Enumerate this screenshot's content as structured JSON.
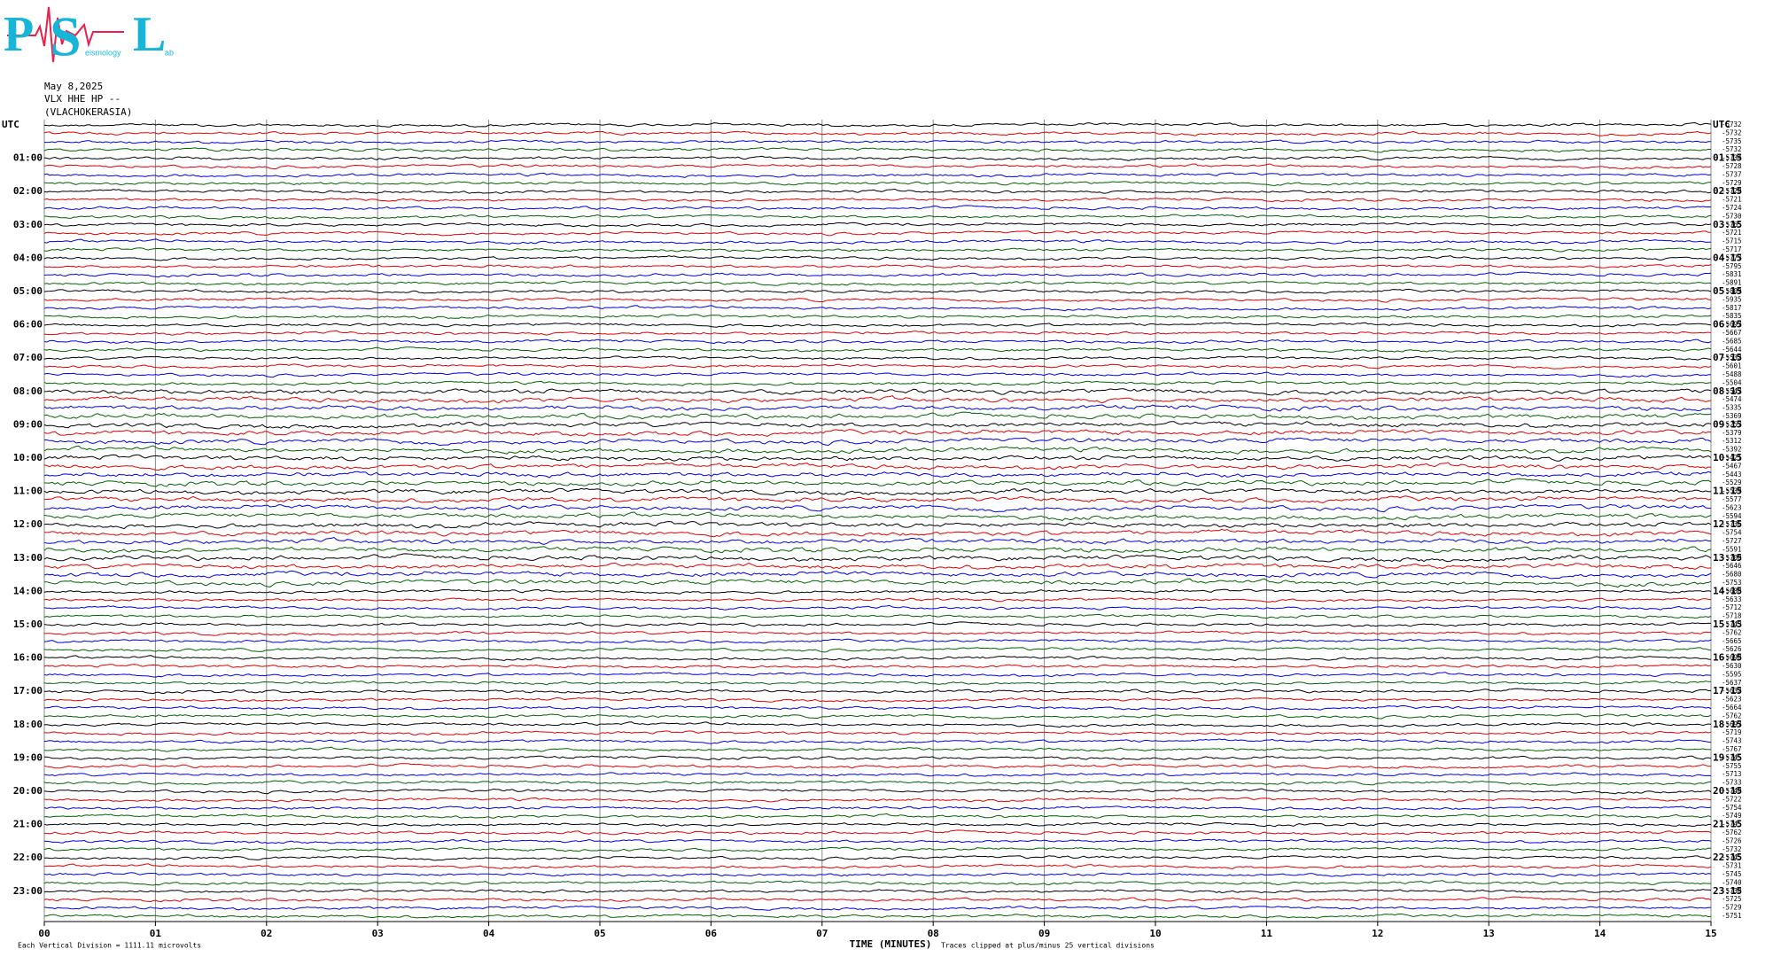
{
  "logo": {
    "letters": [
      "P",
      "S",
      "L"
    ],
    "small": [
      "eismology",
      "ab"
    ]
  },
  "header": {
    "date": "May 8,2025",
    "station": "VLX HHE HP --",
    "site": "(VLACHOKERASIA)"
  },
  "left_labels": [
    "UTC",
    "01:00",
    "02:00",
    "03:00",
    "04:00",
    "05:00",
    "06:00",
    "07:00",
    "08:00",
    "09:00",
    "10:00",
    "11:00",
    "12:00",
    "13:00",
    "14:00",
    "15:00",
    "16:00",
    "17:00",
    "18:00",
    "19:00",
    "20:00",
    "21:00",
    "22:00",
    "23:00"
  ],
  "right_labels": [
    "UTC",
    "01:15",
    "02:15",
    "03:15",
    "04:15",
    "05:15",
    "06:15",
    "07:15",
    "08:15",
    "09:15",
    "10:15",
    "11:15",
    "12:15",
    "13:15",
    "14:15",
    "15:15",
    "16:15",
    "17:15",
    "18:15",
    "19:15",
    "20:15",
    "21:15",
    "22:15",
    "23:15"
  ],
  "offsets": [
    -5732,
    -5732,
    -5735,
    -5732,
    -5734,
    -5728,
    -5737,
    -5729,
    -5720,
    -5721,
    -5724,
    -5730,
    -5765,
    -5721,
    -5715,
    -5717,
    -5777,
    -5795,
    -5831,
    -5891,
    -5809,
    -5935,
    -5817,
    -5835,
    -5697,
    -5667,
    -5685,
    -5644,
    -5532,
    -5601,
    -5488,
    -5504,
    -5547,
    -5474,
    -5335,
    -5369,
    -5257,
    -5379,
    -5312,
    -5392,
    -5421,
    -5467,
    -5443,
    -5529,
    -5539,
    -5577,
    -5623,
    -5594,
    -5736,
    -5754,
    -5727,
    -5591,
    -5700,
    -5646,
    -5680,
    -5753,
    -5688,
    -5633,
    -5712,
    -5718,
    -5743,
    -5762,
    -5665,
    -5626,
    -5698,
    -5630,
    -5595,
    -5637,
    -5632,
    -5623,
    -5664,
    -5762,
    -5697,
    -5719,
    -5743,
    -5767,
    -5745,
    -5755,
    -5713,
    -5733,
    -5740,
    -5722,
    -5754,
    -5749,
    -5745,
    -5762,
    -5726,
    -5732,
    -5745,
    -5731,
    -5745,
    -5740,
    -5738,
    -5725,
    -5729,
    -5751
  ],
  "x_axis": {
    "title": "TIME (MINUTES)",
    "ticks": [
      {
        "value": 0,
        "label": "00"
      },
      {
        "value": 1,
        "label": "01"
      },
      {
        "value": 2,
        "label": "02"
      },
      {
        "value": 3,
        "label": "03"
      },
      {
        "value": 4,
        "label": "04"
      },
      {
        "value": 5,
        "label": "05"
      },
      {
        "value": 6,
        "label": "06"
      },
      {
        "value": 7,
        "label": "07"
      },
      {
        "value": 8,
        "label": "08"
      },
      {
        "value": 9,
        "label": "09"
      },
      {
        "value": 10,
        "label": "10"
      },
      {
        "value": 11,
        "label": "11"
      },
      {
        "value": 12,
        "label": "12"
      },
      {
        "value": 13,
        "label": "13"
      },
      {
        "value": 14,
        "label": "14"
      },
      {
        "value": 15,
        "label": "15"
      }
    ]
  },
  "footer": {
    "scale": "Each Vertical Division = 1111.11 microvolts",
    "clip": "Traces clipped at plus/minus 25 vertical divisions"
  },
  "trace_colors": [
    "#000000",
    "#e00000",
    "#0000e0",
    "#006400"
  ]
}
